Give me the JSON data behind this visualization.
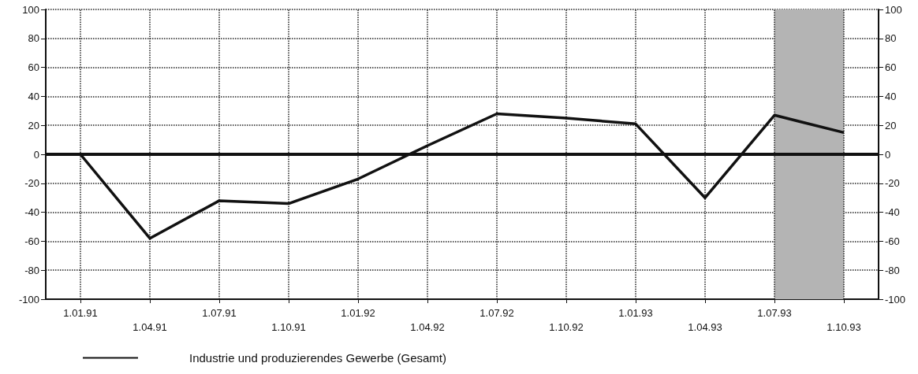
{
  "chart_data": {
    "type": "line",
    "categories": [
      "1.01.91",
      "1.04.91",
      "1.07.91",
      "1.10.91",
      "1.01.92",
      "1.04.92",
      "1.07.92",
      "1.10.92",
      "1.01.93",
      "1.04.93",
      "1.07.93",
      "1.10.93"
    ],
    "series": [
      {
        "name": "Industrie und produzierendes Gewerbe (Gesamt)",
        "color": "#111111",
        "values": [
          0,
          -58,
          -32,
          -34,
          -17,
          6,
          28,
          25,
          21,
          -30,
          27,
          15
        ]
      }
    ],
    "ylim": [
      -100,
      100
    ],
    "yticks": [
      -100,
      -80,
      -60,
      -40,
      -20,
      0,
      20,
      40,
      60,
      80,
      100
    ],
    "y2lim": [
      -100,
      100
    ],
    "y2ticks": [
      -100,
      -80,
      -60,
      -40,
      -20,
      0,
      20,
      40,
      60,
      80,
      100
    ],
    "ref_lines": [
      {
        "axis": "y",
        "value": 0,
        "color": "#111111"
      }
    ],
    "bands": [
      {
        "axis": "x",
        "from": "1.07.93",
        "to": "1.10.93",
        "color": "#b4b4b4"
      }
    ],
    "grid": true,
    "legend": "bottom left",
    "marker": "none",
    "line_style": "solid"
  }
}
